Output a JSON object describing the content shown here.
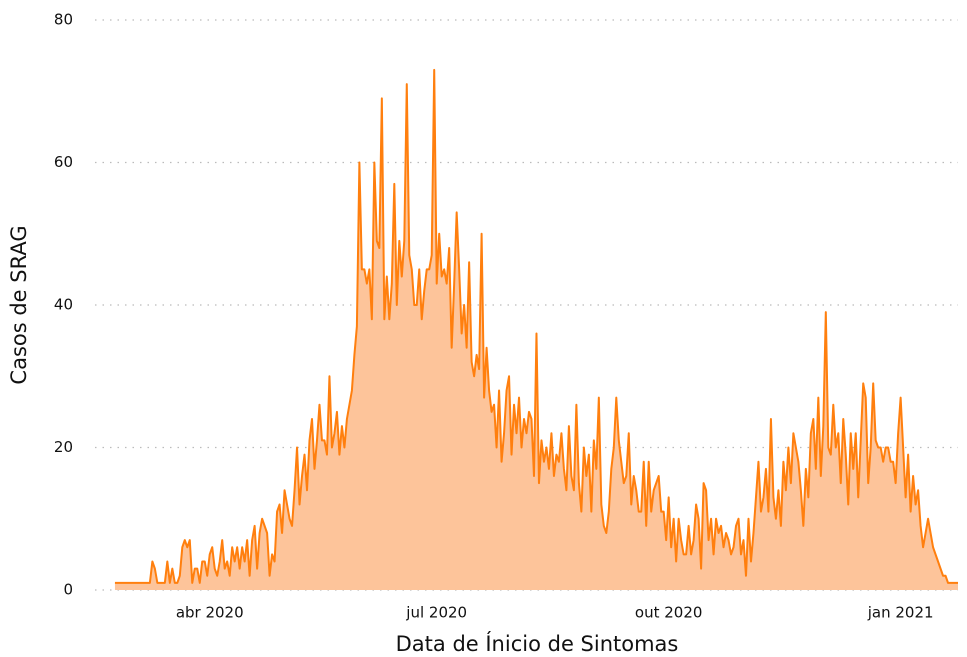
{
  "chart_data": {
    "type": "area",
    "xlabel": "Data de Ínicio de Sintomas",
    "ylabel": "Casos de SRAG",
    "color": "#ff7f0e",
    "fill": "#fdc49a",
    "grid": true,
    "xlim": [
      -8,
      338
    ],
    "ylim": [
      0,
      80
    ],
    "xticks": [
      {
        "value": 38,
        "label": "abr 2020"
      },
      {
        "value": 129,
        "label": "jul 2020"
      },
      {
        "value": 222,
        "label": "out 2020"
      },
      {
        "value": 315,
        "label": "jan 2021"
      }
    ],
    "yticks": [
      0,
      20,
      40,
      60,
      80
    ],
    "x": [
      0,
      1,
      2,
      3,
      4,
      5,
      6,
      7,
      8,
      9,
      10,
      11,
      12,
      13,
      14,
      15,
      16,
      17,
      18,
      19,
      20,
      21,
      22,
      23,
      24,
      25,
      26,
      27,
      28,
      29,
      30,
      31,
      32,
      33,
      34,
      35,
      36,
      37,
      38,
      39,
      40,
      41,
      42,
      43,
      44,
      45,
      46,
      47,
      48,
      49,
      50,
      51,
      52,
      53,
      54,
      55,
      56,
      57,
      58,
      59,
      60,
      61,
      62,
      63,
      64,
      65,
      66,
      67,
      68,
      69,
      70,
      71,
      72,
      73,
      74,
      75,
      76,
      77,
      78,
      79,
      80,
      81,
      82,
      83,
      84,
      85,
      86,
      87,
      88,
      89,
      90,
      91,
      92,
      93,
      94,
      95,
      96,
      97,
      98,
      99,
      100,
      101,
      102,
      103,
      104,
      105,
      106,
      107,
      108,
      109,
      110,
      111,
      112,
      113,
      114,
      115,
      116,
      117,
      118,
      119,
      120,
      121,
      122,
      123,
      124,
      125,
      126,
      127,
      128,
      129,
      130,
      131,
      132,
      133,
      134,
      135,
      136,
      137,
      138,
      139,
      140,
      141,
      142,
      143,
      144,
      145,
      146,
      147,
      148,
      149,
      150,
      151,
      152,
      153,
      154,
      155,
      156,
      157,
      158,
      159,
      160,
      161,
      162,
      163,
      164,
      165,
      166,
      167,
      168,
      169,
      170,
      171,
      172,
      173,
      174,
      175,
      176,
      177,
      178,
      179,
      180,
      181,
      182,
      183,
      184,
      185,
      186,
      187,
      188,
      189,
      190,
      191,
      192,
      193,
      194,
      195,
      196,
      197,
      198,
      199,
      200,
      201,
      202,
      203,
      204,
      205,
      206,
      207,
      208,
      209,
      210,
      211,
      212,
      213,
      214,
      215,
      216,
      217,
      218,
      219,
      220,
      221,
      222,
      223,
      224,
      225,
      226,
      227,
      228,
      229,
      230,
      231,
      232,
      233,
      234,
      235,
      236,
      237,
      238,
      239,
      240,
      241,
      242,
      243,
      244,
      245,
      246,
      247,
      248,
      249,
      250,
      251,
      252,
      253,
      254,
      255,
      256,
      257,
      258,
      259,
      260,
      261,
      262,
      263,
      264,
      265,
      266,
      267,
      268,
      269,
      270,
      271,
      272,
      273,
      274,
      275,
      276,
      277,
      278,
      279,
      280,
      281,
      282,
      283,
      284,
      285,
      286,
      287,
      288,
      289,
      290,
      291,
      292,
      293,
      294,
      295,
      296,
      297,
      298,
      299,
      300,
      301,
      302,
      303,
      304,
      305,
      306,
      307,
      308,
      309,
      310,
      311,
      312,
      313,
      314,
      315,
      316,
      317,
      318,
      319,
      320,
      321,
      322,
      323,
      324,
      325,
      326,
      327,
      328,
      329,
      330,
      331,
      332,
      333,
      334,
      335,
      336,
      337,
      338
    ],
    "values": [
      1,
      1,
      1,
      1,
      1,
      1,
      1,
      1,
      1,
      1,
      1,
      1,
      1,
      1,
      1,
      4,
      3,
      1,
      1,
      1,
      1,
      4,
      1,
      3,
      1,
      1,
      2,
      6,
      7,
      6,
      7,
      1,
      3,
      3,
      1,
      4,
      4,
      2,
      5,
      6,
      3,
      2,
      4,
      7,
      3,
      4,
      2,
      6,
      4,
      6,
      3,
      6,
      4,
      7,
      2,
      7,
      9,
      3,
      8,
      10,
      9,
      8,
      2,
      5,
      4,
      11,
      12,
      8,
      14,
      12,
      10,
      9,
      14,
      20,
      12,
      16,
      19,
      14,
      21,
      24,
      17,
      21,
      26,
      21,
      21,
      19,
      30,
      20,
      22,
      25,
      19,
      23,
      20,
      24,
      26,
      28,
      33,
      37,
      60,
      45,
      45,
      43,
      45,
      38,
      60,
      49,
      48,
      69,
      38,
      44,
      38,
      43,
      57,
      40,
      49,
      44,
      49,
      71,
      47,
      45,
      40,
      40,
      45,
      38,
      42,
      45,
      45,
      47,
      73,
      43,
      50,
      44,
      45,
      43,
      48,
      34,
      43,
      53,
      45,
      36,
      40,
      34,
      46,
      32,
      30,
      33,
      31,
      50,
      27,
      34,
      28,
      25,
      26,
      20,
      28,
      18,
      22,
      28,
      30,
      19,
      26,
      22,
      27,
      20,
      24,
      22,
      25,
      24,
      16,
      36,
      15,
      21,
      18,
      20,
      17,
      22,
      16,
      19,
      18,
      22,
      17,
      14,
      23,
      16,
      14,
      26,
      15,
      11,
      20,
      16,
      19,
      11,
      21,
      17,
      27,
      12,
      9,
      8,
      11,
      17,
      20,
      27,
      21,
      18,
      15,
      16,
      22,
      12,
      16,
      14,
      11,
      11,
      18,
      9,
      18,
      11,
      14,
      15,
      16,
      11,
      11,
      7,
      13,
      6,
      10,
      4,
      10,
      7,
      5,
      5,
      9,
      5,
      7,
      12,
      10,
      3,
      15,
      14,
      7,
      10,
      5,
      10,
      8,
      9,
      6,
      8,
      7,
      5,
      6,
      9,
      10,
      5,
      7,
      2,
      10,
      4,
      8,
      13,
      18,
      11,
      13,
      17,
      11,
      24,
      13,
      10,
      14,
      9,
      18,
      14,
      20,
      15,
      22,
      20,
      18,
      14,
      9,
      17,
      13,
      22,
      24,
      17,
      27,
      16,
      23,
      39,
      20,
      19,
      26,
      20,
      22,
      15,
      24,
      19,
      12,
      22,
      17,
      22,
      13,
      21,
      29,
      27,
      15,
      20,
      29,
      21,
      20,
      20,
      18,
      20,
      20,
      18,
      18,
      15,
      22,
      27,
      20,
      13,
      19,
      11,
      16,
      12,
      14,
      9,
      6,
      8,
      10,
      8,
      6,
      5,
      4,
      3,
      2,
      2,
      1,
      1,
      1,
      1,
      1
    ]
  }
}
